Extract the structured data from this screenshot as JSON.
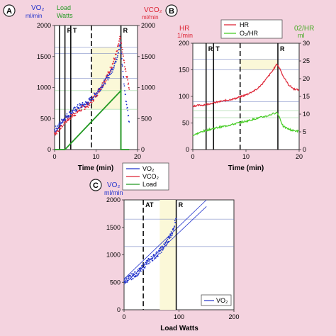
{
  "colors": {
    "background": "#f4d3df",
    "vo2": "#2233cc",
    "vco2": "#dd2233",
    "load": "#229922",
    "hr": "#dd2233",
    "o2hr": "#44cc22",
    "band": "#fbf8d8",
    "hline_blue": "#6677bb",
    "hline_green": "#88cc88"
  },
  "chart_data": [
    {
      "panel": "A",
      "type": "scatter",
      "xlabel": "Time (min)",
      "xlim": [
        0,
        20
      ],
      "xticks": [
        "0",
        "10",
        "20"
      ],
      "ylim_left": [
        0,
        2000
      ],
      "yticks_left": [
        "0",
        "500",
        "1000",
        "1500",
        "2000"
      ],
      "ylim_right": [
        0,
        2000
      ],
      "yticks_right": [
        "0",
        "500",
        "1000",
        "1500",
        "2000"
      ],
      "left_axis_label": [
        "VO₂",
        "ml/min"
      ],
      "load_axis_label": [
        "Load",
        "Watts"
      ],
      "right_axis_label": [
        "VCO₂",
        "ml/min"
      ],
      "markers": [
        {
          "label": "R",
          "x": 2.5,
          "style": "solid"
        },
        {
          "label": "T",
          "x": 3.9,
          "style": "solid"
        },
        {
          "label": "",
          "x": 1.2,
          "style": "solid"
        },
        {
          "label": "",
          "x": 8.9,
          "style": "dashed"
        },
        {
          "label": "R",
          "x": 16.0,
          "style": "solid"
        }
      ],
      "hlines": [
        1650,
        1550,
        1150,
        950,
        650
      ],
      "band": {
        "x": [
          9.0,
          16.0
        ],
        "y": [
          650,
          1650
        ]
      },
      "series": [
        {
          "name": "VO₂",
          "x": [
            0,
            1,
            2,
            3,
            4,
            5,
            6,
            7,
            8,
            9,
            10,
            11,
            12,
            13,
            14,
            15,
            15.8,
            16.2,
            17,
            18
          ],
          "y": [
            320,
            380,
            480,
            540,
            600,
            650,
            700,
            720,
            760,
            830,
            900,
            990,
            1080,
            1180,
            1300,
            1480,
            1720,
            1450,
            900,
            450
          ]
        },
        {
          "name": "VCO₂",
          "x": [
            0,
            1,
            2,
            3,
            4,
            5,
            6,
            7,
            8,
            9,
            10,
            11,
            12,
            13,
            14,
            15,
            15.8,
            16.2,
            17,
            18
          ],
          "y": [
            260,
            320,
            420,
            480,
            540,
            590,
            640,
            680,
            720,
            790,
            880,
            990,
            1100,
            1230,
            1380,
            1560,
            1800,
            1650,
            1300,
            1000
          ]
        },
        {
          "name": "Load",
          "x": [
            0,
            2.5,
            16.0,
            16.0,
            18
          ],
          "y": [
            0,
            0,
            950,
            0,
            0
          ]
        }
      ],
      "legend": [
        "VO₂",
        "VCO₂",
        "Load"
      ]
    },
    {
      "panel": "B",
      "type": "line",
      "xlabel": "Time (min)",
      "xlim": [
        0,
        20
      ],
      "xticks": [
        "0",
        "10",
        "20"
      ],
      "ylim_left": [
        0,
        200
      ],
      "yticks_left": [
        "0",
        "50",
        "100",
        "150",
        "200"
      ],
      "ylim_right": [
        0,
        30
      ],
      "yticks_right": [
        "0",
        "5",
        "10",
        "15",
        "20",
        "25",
        "30"
      ],
      "left_axis_label": [
        "HR",
        "1/min"
      ],
      "right_axis_label": [
        "02/HR",
        "ml"
      ],
      "markers": [
        {
          "label": "R",
          "x": 2.5,
          "style": "solid"
        },
        {
          "label": "T",
          "x": 3.9,
          "style": "solid"
        },
        {
          "label": "",
          "x": 8.9,
          "style": "dashed"
        },
        {
          "label": "R",
          "x": 16.0,
          "style": "solid"
        }
      ],
      "hlines_left": [
        170,
        150,
        90
      ],
      "hlines_right": [
        11,
        9
      ],
      "band": {
        "x": [
          9.0,
          16.0
        ],
        "y": [
          150,
          170
        ]
      },
      "series": [
        {
          "name": "HR",
          "axis": "left",
          "x": [
            0,
            2,
            4,
            6,
            8,
            10,
            12,
            13,
            14,
            15,
            15.8,
            16.5,
            17,
            18,
            19,
            20
          ],
          "y": [
            82,
            84,
            88,
            92,
            96,
            103,
            113,
            123,
            135,
            148,
            161,
            150,
            138,
            122,
            114,
            112
          ]
        },
        {
          "name": "O₂/HR",
          "axis": "right",
          "x": [
            0,
            1,
            2,
            4,
            6,
            8,
            10,
            12,
            14,
            15.8,
            16.2,
            17,
            18,
            19,
            20
          ],
          "y": [
            4.0,
            4.6,
            5.2,
            6.0,
            6.6,
            7.3,
            8.0,
            8.8,
            9.5,
            10.5,
            9.5,
            6.5,
            5.8,
            5.3,
            5.2
          ]
        }
      ],
      "legend": [
        "HR",
        "O₂/HR"
      ]
    },
    {
      "panel": "C",
      "type": "scatter",
      "xlabel": "Load Watts",
      "xlim": [
        0,
        200
      ],
      "xticks": [
        "0",
        "100",
        "200"
      ],
      "ylim": [
        0,
        2000
      ],
      "yticks": [
        "0",
        "500",
        "1000",
        "1500",
        "2000"
      ],
      "left_axis_label": [
        "VO₂",
        "ml/min"
      ],
      "markers": [
        {
          "label": "AT",
          "x": 35,
          "style": "dashed"
        },
        {
          "label": "R",
          "x": 95,
          "style": "solid"
        }
      ],
      "hlines": [
        1650,
        1150
      ],
      "band": {
        "x": [
          65,
          95
        ],
        "y": [
          0,
          2000
        ]
      },
      "fit_lines": [
        {
          "x": [
            0,
            150
          ],
          "y": [
            560,
            2000
          ]
        },
        {
          "x": [
            0,
            150
          ],
          "y": [
            460,
            1880
          ]
        }
      ],
      "series": [
        {
          "name": "VO₂",
          "x": [
            0,
            10,
            20,
            30,
            40,
            50,
            60,
            70,
            80,
            90,
            95
          ],
          "y": [
            520,
            580,
            640,
            720,
            840,
            930,
            1010,
            1120,
            1260,
            1460,
            1720
          ]
        }
      ],
      "legend": [
        "VO₂"
      ]
    }
  ],
  "panel_letters": [
    "A",
    "B",
    "C"
  ]
}
